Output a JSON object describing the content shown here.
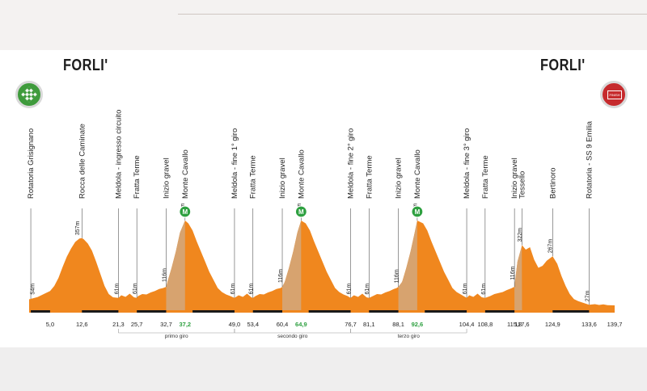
{
  "start_city": "FORLI'",
  "finish_city": "FORLI'",
  "finish_badge_text": "FINISH",
  "colors": {
    "profile": "#f0871e",
    "gravel": "#d7a36f",
    "sector": "#1a1a1a",
    "gpm": "#2ea040",
    "green_km": "#2ea040"
  },
  "waypoints": [
    {
      "name": "Rotatoria Grisignano",
      "km": 0.4
    },
    {
      "name": "Rocca delle Caminate",
      "km": 12.6
    },
    {
      "name": "Meldola - ingresso circuito",
      "km": 21.3
    },
    {
      "name": "Fratta Terme",
      "km": 25.7
    },
    {
      "name": "Inizio gravel",
      "km": 32.7
    },
    {
      "name": "Monte Cavallo",
      "km": 37.2
    },
    {
      "name": "Meldola - fine 1° giro",
      "km": 49.0
    },
    {
      "name": "Fratta Terme",
      "km": 53.4
    },
    {
      "name": "Inizio gravel",
      "km": 60.4
    },
    {
      "name": "Monte Cavallo",
      "km": 64.9
    },
    {
      "name": "Meldola - fine 2° giro",
      "km": 76.7
    },
    {
      "name": "Fratta Terme",
      "km": 81.1
    },
    {
      "name": "Inizio gravel",
      "km": 88.1
    },
    {
      "name": "Monte Cavallo",
      "km": 92.6
    },
    {
      "name": "Meldola - fine 3° giro",
      "km": 104.4
    },
    {
      "name": "Fratta Terme",
      "km": 108.8
    },
    {
      "name": "Inizio gravel",
      "km": 115.8
    },
    {
      "name": "Tessello",
      "km": 117.6
    },
    {
      "name": "Bertinoro",
      "km": 124.9
    },
    {
      "name": "Rotatoria - SS 9 Emilia",
      "km": 133.6
    }
  ],
  "altitude_labels": [
    {
      "text": "54m",
      "km": 0.9
    },
    {
      "text": "357m",
      "km": 11.6
    },
    {
      "text": "61m",
      "km": 20.9
    },
    {
      "text": "61m",
      "km": 25.3
    },
    {
      "text": "116m",
      "km": 32.3
    },
    {
      "text": "444m",
      "km": 36.7
    },
    {
      "text": "61m",
      "km": 48.6
    },
    {
      "text": "61m",
      "km": 53.0
    },
    {
      "text": "116m",
      "km": 60.0
    },
    {
      "text": "444m",
      "km": 64.4
    },
    {
      "text": "61m",
      "km": 76.3
    },
    {
      "text": "61m",
      "km": 80.7
    },
    {
      "text": "116m",
      "km": 87.7
    },
    {
      "text": "444m",
      "km": 92.1
    },
    {
      "text": "61m",
      "km": 104.0
    },
    {
      "text": "61m",
      "km": 108.4
    },
    {
      "text": "116m",
      "km": 115.4
    },
    {
      "text": "322m",
      "km": 117.1
    },
    {
      "text": "267m",
      "km": 124.4
    },
    {
      "text": "27m",
      "km": 133.2
    }
  ],
  "km_labels": [
    {
      "text": "5,0",
      "km": 5.0,
      "green": false
    },
    {
      "text": "12,6",
      "km": 12.6,
      "green": false
    },
    {
      "text": "21,3",
      "km": 21.3,
      "green": false
    },
    {
      "text": "25,7",
      "km": 25.7,
      "green": false
    },
    {
      "text": "32,7",
      "km": 32.7,
      "green": false
    },
    {
      "text": "37,2",
      "km": 37.2,
      "green": true
    },
    {
      "text": "49,0",
      "km": 49.0,
      "green": false
    },
    {
      "text": "53,4",
      "km": 53.4,
      "green": false
    },
    {
      "text": "60,4",
      "km": 60.4,
      "green": false
    },
    {
      "text": "64,9",
      "km": 64.9,
      "green": true
    },
    {
      "text": "76,7",
      "km": 76.7,
      "green": false
    },
    {
      "text": "81,1",
      "km": 81.1,
      "green": false
    },
    {
      "text": "88,1",
      "km": 88.1,
      "green": false
    },
    {
      "text": "92,6",
      "km": 92.6,
      "green": true
    },
    {
      "text": "104,4",
      "km": 104.4,
      "green": false
    },
    {
      "text": "108,8",
      "km": 108.8,
      "green": false
    },
    {
      "text": "115,8",
      "km": 115.8,
      "green": false
    },
    {
      "text": "117,6",
      "km": 117.6,
      "green": false
    },
    {
      "text": "124,9",
      "km": 124.9,
      "green": false
    },
    {
      "text": "133,6",
      "km": 133.6,
      "green": false
    },
    {
      "text": "139,7",
      "km": 139.7,
      "green": false
    }
  ],
  "laps": [
    {
      "label": "primo giro",
      "from_km": 21.3,
      "to_km": 49.0
    },
    {
      "label": "secondo giro",
      "from_km": 49.0,
      "to_km": 76.7
    },
    {
      "label": "terzo giro",
      "from_km": 76.7,
      "to_km": 104.4
    }
  ],
  "gpm": [
    {
      "text": "M",
      "km": 37.2
    },
    {
      "text": "M",
      "km": 64.9
    },
    {
      "text": "M",
      "km": 92.6
    }
  ],
  "gravel_sectors": [
    {
      "from_km": 32.7,
      "to_km": 37.2
    },
    {
      "from_km": 60.4,
      "to_km": 64.9
    },
    {
      "from_km": 88.1,
      "to_km": 92.6
    },
    {
      "from_km": 115.8,
      "to_km": 117.6
    }
  ],
  "dark_sectors": [
    {
      "from_km": 0.4,
      "to_km": 5.0
    },
    {
      "from_km": 12.6,
      "to_km": 21.3
    },
    {
      "from_km": 25.7,
      "to_km": 32.7
    },
    {
      "from_km": 39.0,
      "to_km": 49.0
    },
    {
      "from_km": 53.4,
      "to_km": 60.4
    },
    {
      "from_km": 66.7,
      "to_km": 76.7
    },
    {
      "from_km": 81.1,
      "to_km": 88.1
    },
    {
      "from_km": 94.4,
      "to_km": 104.4
    },
    {
      "from_km": 108.8,
      "to_km": 115.8
    },
    {
      "from_km": 124.9,
      "to_km": 133.6
    }
  ],
  "profile": [
    [
      0,
      54
    ],
    [
      2,
      65
    ],
    [
      4,
      85
    ],
    [
      5,
      95
    ],
    [
      6,
      120
    ],
    [
      7,
      160
    ],
    [
      8,
      215
    ],
    [
      9,
      265
    ],
    [
      10,
      305
    ],
    [
      11,
      338
    ],
    [
      12,
      355
    ],
    [
      12.6,
      357
    ],
    [
      13,
      352
    ],
    [
      14,
      330
    ],
    [
      15,
      295
    ],
    [
      16,
      240
    ],
    [
      17,
      180
    ],
    [
      18,
      120
    ],
    [
      19,
      80
    ],
    [
      20,
      64
    ],
    [
      21.3,
      61
    ],
    [
      22,
      74
    ],
    [
      23,
      66
    ],
    [
      24,
      82
    ],
    [
      25,
      64
    ],
    [
      25.7,
      61
    ],
    [
      26,
      70
    ],
    [
      27,
      80
    ],
    [
      28,
      78
    ],
    [
      29,
      88
    ],
    [
      30,
      95
    ],
    [
      31,
      105
    ],
    [
      32,
      110
    ],
    [
      32.7,
      116
    ],
    [
      33,
      140
    ],
    [
      34,
      210
    ],
    [
      35,
      290
    ],
    [
      36,
      385
    ],
    [
      37.2,
      444
    ],
    [
      38,
      430
    ],
    [
      39,
      395
    ],
    [
      40,
      340
    ],
    [
      41,
      290
    ],
    [
      42,
      240
    ],
    [
      43,
      190
    ],
    [
      44,
      150
    ],
    [
      45,
      110
    ],
    [
      46,
      90
    ],
    [
      47,
      78
    ],
    [
      48,
      70
    ],
    [
      49,
      61
    ],
    [
      50,
      74
    ],
    [
      51,
      66
    ],
    [
      52,
      82
    ],
    [
      53,
      64
    ],
    [
      53.4,
      61
    ],
    [
      54,
      70
    ],
    [
      55,
      80
    ],
    [
      56,
      78
    ],
    [
      57,
      88
    ],
    [
      58,
      95
    ],
    [
      59,
      105
    ],
    [
      60,
      110
    ],
    [
      60.4,
      116
    ],
    [
      61,
      140
    ],
    [
      62,
      210
    ],
    [
      63,
      290
    ],
    [
      64,
      385
    ],
    [
      64.9,
      444
    ],
    [
      66,
      430
    ],
    [
      67,
      395
    ],
    [
      68,
      340
    ],
    [
      69,
      290
    ],
    [
      70,
      240
    ],
    [
      71,
      190
    ],
    [
      72,
      150
    ],
    [
      73,
      110
    ],
    [
      74,
      90
    ],
    [
      75,
      78
    ],
    [
      76,
      70
    ],
    [
      76.7,
      61
    ],
    [
      77.5,
      74
    ],
    [
      78.5,
      66
    ],
    [
      79.5,
      82
    ],
    [
      80.5,
      64
    ],
    [
      81.1,
      61
    ],
    [
      82,
      70
    ],
    [
      83,
      80
    ],
    [
      84,
      78
    ],
    [
      85,
      88
    ],
    [
      86,
      95
    ],
    [
      87,
      105
    ],
    [
      87.7,
      110
    ],
    [
      88.1,
      116
    ],
    [
      89,
      140
    ],
    [
      90,
      210
    ],
    [
      91,
      290
    ],
    [
      92,
      385
    ],
    [
      92.6,
      444
    ],
    [
      94,
      430
    ],
    [
      95,
      395
    ],
    [
      96,
      340
    ],
    [
      97,
      290
    ],
    [
      98,
      240
    ],
    [
      99,
      190
    ],
    [
      100,
      150
    ],
    [
      101,
      110
    ],
    [
      102,
      90
    ],
    [
      103,
      78
    ],
    [
      104.4,
      61
    ],
    [
      105,
      74
    ],
    [
      106,
      66
    ],
    [
      107,
      82
    ],
    [
      108,
      64
    ],
    [
      108.8,
      61
    ],
    [
      110,
      70
    ],
    [
      111,
      80
    ],
    [
      112,
      85
    ],
    [
      113,
      90
    ],
    [
      114,
      100
    ],
    [
      115,
      108
    ],
    [
      115.8,
      116
    ],
    [
      116.5,
      240
    ],
    [
      117.6,
      322
    ],
    [
      118.5,
      300
    ],
    [
      119.5,
      312
    ],
    [
      120.5,
      250
    ],
    [
      121.5,
      210
    ],
    [
      122.5,
      220
    ],
    [
      123.5,
      245
    ],
    [
      124.9,
      267
    ],
    [
      126,
      230
    ],
    [
      127,
      170
    ],
    [
      128,
      120
    ],
    [
      129,
      80
    ],
    [
      130,
      55
    ],
    [
      131,
      45
    ],
    [
      132,
      38
    ],
    [
      133.6,
      27
    ],
    [
      135,
      30
    ],
    [
      136,
      26
    ],
    [
      137,
      29
    ],
    [
      138,
      25
    ],
    [
      139.7,
      24
    ]
  ]
}
